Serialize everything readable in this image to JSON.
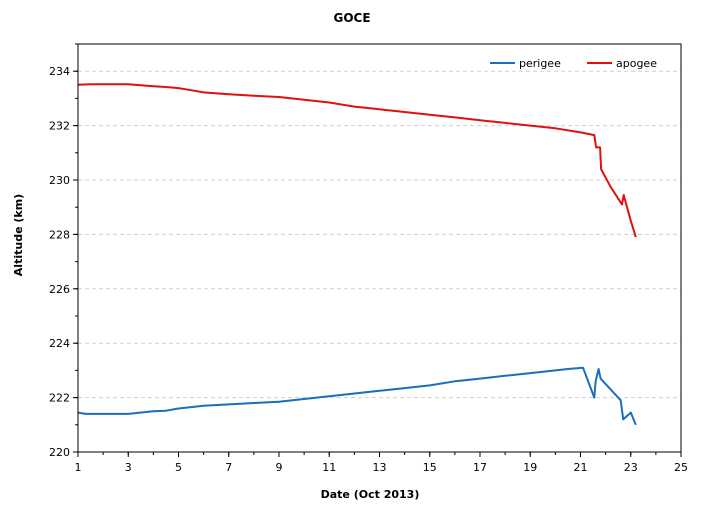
{
  "chart_data": {
    "type": "line",
    "title": "GOCE",
    "xlabel": "Date (Oct 2013)",
    "ylabel": "Altitude (km)",
    "xlim": [
      1,
      25
    ],
    "ylim": [
      220,
      235
    ],
    "x_ticks": [
      1,
      3,
      5,
      7,
      9,
      11,
      13,
      15,
      17,
      19,
      21,
      23,
      25
    ],
    "y_ticks": [
      220,
      222,
      224,
      226,
      228,
      230,
      232,
      234
    ],
    "grid": "horizontal dashed",
    "legend_position": "top-right",
    "series": [
      {
        "name": "perigee",
        "color": "#1a6fba",
        "points": [
          [
            1.0,
            221.45
          ],
          [
            1.3,
            221.4
          ],
          [
            2.0,
            221.4
          ],
          [
            3.0,
            221.4
          ],
          [
            4.0,
            221.5
          ],
          [
            4.5,
            221.52
          ],
          [
            5.0,
            221.6
          ],
          [
            5.5,
            221.65
          ],
          [
            6.0,
            221.7
          ],
          [
            7.0,
            221.75
          ],
          [
            8.0,
            221.8
          ],
          [
            9.0,
            221.85
          ],
          [
            10.0,
            221.95
          ],
          [
            11.0,
            222.05
          ],
          [
            12.0,
            222.15
          ],
          [
            13.0,
            222.25
          ],
          [
            14.0,
            222.35
          ],
          [
            15.0,
            222.45
          ],
          [
            16.0,
            222.6
          ],
          [
            17.0,
            222.7
          ],
          [
            18.0,
            222.8
          ],
          [
            19.0,
            222.9
          ],
          [
            20.0,
            223.0
          ],
          [
            20.5,
            223.05
          ],
          [
            21.1,
            223.1
          ],
          [
            21.55,
            222.0
          ],
          [
            21.6,
            222.6
          ],
          [
            21.72,
            223.05
          ],
          [
            21.8,
            222.7
          ],
          [
            22.1,
            222.4
          ],
          [
            22.6,
            221.9
          ],
          [
            22.7,
            221.2
          ],
          [
            23.0,
            221.45
          ],
          [
            23.2,
            221.0
          ]
        ]
      },
      {
        "name": "apogee",
        "color": "#e01010",
        "points": [
          [
            1.0,
            233.5
          ],
          [
            1.5,
            233.52
          ],
          [
            2.0,
            233.52
          ],
          [
            3.0,
            233.52
          ],
          [
            4.0,
            233.45
          ],
          [
            4.5,
            233.42
          ],
          [
            5.0,
            233.38
          ],
          [
            5.5,
            233.3
          ],
          [
            6.0,
            233.22
          ],
          [
            7.0,
            233.15
          ],
          [
            8.0,
            233.1
          ],
          [
            9.0,
            233.05
          ],
          [
            10.0,
            232.95
          ],
          [
            11.0,
            232.85
          ],
          [
            12.0,
            232.7
          ],
          [
            13.0,
            232.6
          ],
          [
            14.0,
            232.5
          ],
          [
            15.0,
            232.4
          ],
          [
            16.0,
            232.3
          ],
          [
            17.0,
            232.2
          ],
          [
            18.0,
            232.1
          ],
          [
            19.0,
            232.0
          ],
          [
            20.0,
            231.9
          ],
          [
            21.0,
            231.75
          ],
          [
            21.55,
            231.65
          ],
          [
            21.62,
            231.2
          ],
          [
            21.78,
            231.2
          ],
          [
            21.82,
            230.4
          ],
          [
            22.2,
            229.75
          ],
          [
            22.65,
            229.1
          ],
          [
            22.72,
            229.45
          ],
          [
            23.0,
            228.5
          ],
          [
            23.2,
            227.9
          ]
        ]
      }
    ]
  }
}
